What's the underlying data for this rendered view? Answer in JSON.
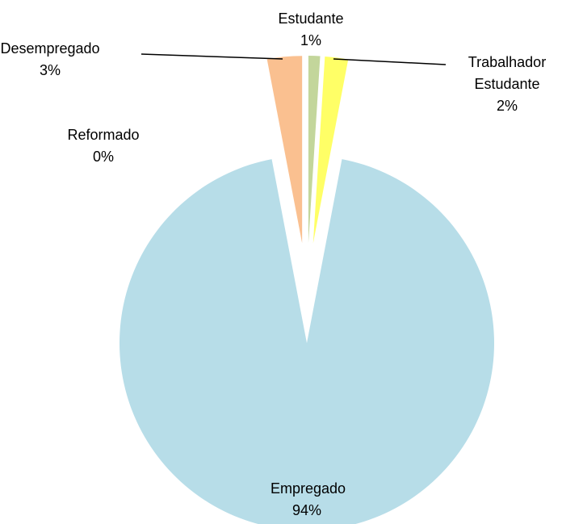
{
  "chart_data": {
    "type": "pie",
    "categories": [
      "Estudante",
      "Trabalhador Estudante",
      "Empregado",
      "Reformado",
      "Desempregado"
    ],
    "values": [
      1,
      2,
      94,
      0,
      3
    ],
    "value_labels": [
      "1%",
      "2%",
      "94%",
      "0%",
      "3%"
    ],
    "colors": [
      "#c3d69b",
      "#ffff66",
      "#b7dde8",
      "#ccc0da",
      "#fac090"
    ]
  }
}
